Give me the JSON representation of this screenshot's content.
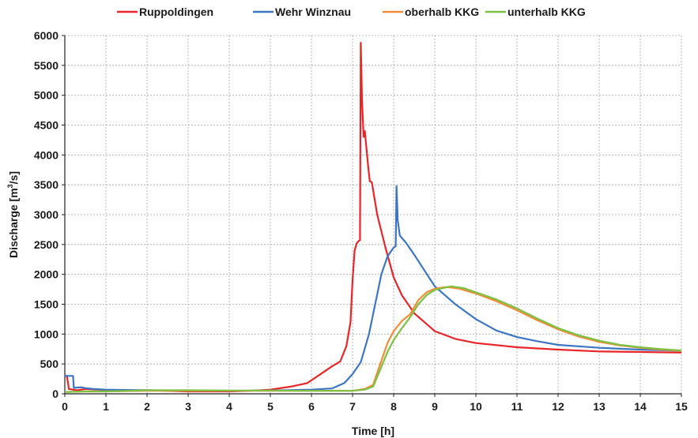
{
  "chart_data": {
    "type": "line",
    "xlabel": "Time [h]",
    "ylabel_main": "Discharge [m",
    "ylabel_sup": "3",
    "ylabel_tail": "/s]",
    "xlim": [
      0,
      15
    ],
    "ylim": [
      0,
      6000
    ],
    "x_ticks": [
      "0",
      "1",
      "2",
      "3",
      "4",
      "5",
      "6",
      "7",
      "8",
      "9",
      "10",
      "11",
      "12",
      "13",
      "14",
      "15"
    ],
    "y_ticks": [
      "0",
      "500",
      "1000",
      "1500",
      "2000",
      "2500",
      "3000",
      "3500",
      "4000",
      "4500",
      "5000",
      "5500",
      "6000"
    ],
    "grid": true,
    "legend_position": "top",
    "series": [
      {
        "name": "Ruppoldingen",
        "color": "#e8262a",
        "points": [
          [
            0,
            300
          ],
          [
            0.05,
            300
          ],
          [
            0.1,
            80
          ],
          [
            0.3,
            60
          ],
          [
            0.5,
            80
          ],
          [
            0.8,
            70
          ],
          [
            1,
            60
          ],
          [
            1.5,
            55
          ],
          [
            2,
            60
          ],
          [
            3,
            40
          ],
          [
            4,
            40
          ],
          [
            4.5,
            50
          ],
          [
            5,
            70
          ],
          [
            5.5,
            120
          ],
          [
            5.9,
            180
          ],
          [
            6.2,
            320
          ],
          [
            6.5,
            460
          ],
          [
            6.7,
            540
          ],
          [
            6.85,
            800
          ],
          [
            6.95,
            1200
          ],
          [
            7.0,
            1900
          ],
          [
            7.05,
            2400
          ],
          [
            7.1,
            2520
          ],
          [
            7.15,
            2560
          ],
          [
            7.18,
            2570
          ],
          [
            7.2,
            5880
          ],
          [
            7.23,
            4900
          ],
          [
            7.27,
            4300
          ],
          [
            7.3,
            4400
          ],
          [
            7.32,
            4250
          ],
          [
            7.38,
            3800
          ],
          [
            7.42,
            3560
          ],
          [
            7.47,
            3540
          ],
          [
            7.6,
            3000
          ],
          [
            7.8,
            2450
          ],
          [
            8.0,
            1950
          ],
          [
            8.2,
            1650
          ],
          [
            8.5,
            1350
          ],
          [
            9.0,
            1050
          ],
          [
            9.5,
            920
          ],
          [
            10,
            850
          ],
          [
            11,
            780
          ],
          [
            12,
            740
          ],
          [
            13,
            710
          ],
          [
            14,
            700
          ],
          [
            15,
            690
          ]
        ]
      },
      {
        "name": "Wehr Winznau",
        "color": "#3c76c2",
        "points": [
          [
            0,
            300
          ],
          [
            0.2,
            300
          ],
          [
            0.22,
            100
          ],
          [
            0.4,
            110
          ],
          [
            0.5,
            95
          ],
          [
            0.7,
            80
          ],
          [
            1,
            70
          ],
          [
            2,
            60
          ],
          [
            3,
            55
          ],
          [
            4,
            50
          ],
          [
            5,
            55
          ],
          [
            6,
            70
          ],
          [
            6.5,
            90
          ],
          [
            6.8,
            180
          ],
          [
            7.0,
            330
          ],
          [
            7.2,
            530
          ],
          [
            7.4,
            1000
          ],
          [
            7.55,
            1500
          ],
          [
            7.7,
            2000
          ],
          [
            7.85,
            2300
          ],
          [
            8.0,
            2450
          ],
          [
            8.05,
            2470
          ],
          [
            8.07,
            3480
          ],
          [
            8.1,
            2900
          ],
          [
            8.15,
            2650
          ],
          [
            8.3,
            2530
          ],
          [
            8.5,
            2330
          ],
          [
            9,
            1800
          ],
          [
            9.5,
            1500
          ],
          [
            10,
            1250
          ],
          [
            10.5,
            1060
          ],
          [
            11,
            950
          ],
          [
            11.5,
            880
          ],
          [
            12,
            820
          ],
          [
            13,
            770
          ],
          [
            14,
            740
          ],
          [
            15,
            720
          ]
        ]
      },
      {
        "name": "oberhalb KKG",
        "color": "#f28c3a",
        "points": [
          [
            0,
            30
          ],
          [
            0.5,
            40
          ],
          [
            1,
            40
          ],
          [
            2,
            50
          ],
          [
            3,
            50
          ],
          [
            4,
            50
          ],
          [
            5,
            50
          ],
          [
            6,
            50
          ],
          [
            7,
            50
          ],
          [
            7.3,
            80
          ],
          [
            7.5,
            150
          ],
          [
            7.7,
            550
          ],
          [
            7.85,
            850
          ],
          [
            8.0,
            1050
          ],
          [
            8.2,
            1220
          ],
          [
            8.4,
            1330
          ],
          [
            8.6,
            1570
          ],
          [
            8.8,
            1700
          ],
          [
            9.0,
            1760
          ],
          [
            9.3,
            1790
          ],
          [
            9.6,
            1760
          ],
          [
            10,
            1680
          ],
          [
            10.5,
            1550
          ],
          [
            11,
            1400
          ],
          [
            11.5,
            1230
          ],
          [
            12,
            1080
          ],
          [
            12.5,
            960
          ],
          [
            13,
            870
          ],
          [
            13.5,
            810
          ],
          [
            14,
            770
          ],
          [
            14.5,
            740
          ],
          [
            15,
            720
          ]
        ]
      },
      {
        "name": "unterhalb KKG",
        "color": "#7cc142",
        "points": [
          [
            0,
            30
          ],
          [
            0.5,
            40
          ],
          [
            1,
            40
          ],
          [
            2,
            60
          ],
          [
            3,
            60
          ],
          [
            4,
            55
          ],
          [
            5,
            55
          ],
          [
            6,
            50
          ],
          [
            7,
            50
          ],
          [
            7.3,
            70
          ],
          [
            7.5,
            120
          ],
          [
            7.7,
            450
          ],
          [
            7.85,
            700
          ],
          [
            8.0,
            900
          ],
          [
            8.2,
            1100
          ],
          [
            8.4,
            1280
          ],
          [
            8.6,
            1500
          ],
          [
            8.8,
            1650
          ],
          [
            9.0,
            1740
          ],
          [
            9.4,
            1800
          ],
          [
            9.7,
            1770
          ],
          [
            10,
            1700
          ],
          [
            10.5,
            1580
          ],
          [
            11,
            1430
          ],
          [
            11.5,
            1260
          ],
          [
            12,
            1100
          ],
          [
            12.5,
            980
          ],
          [
            13,
            890
          ],
          [
            13.5,
            820
          ],
          [
            14,
            780
          ],
          [
            14.5,
            750
          ],
          [
            15,
            725
          ]
        ]
      }
    ]
  }
}
